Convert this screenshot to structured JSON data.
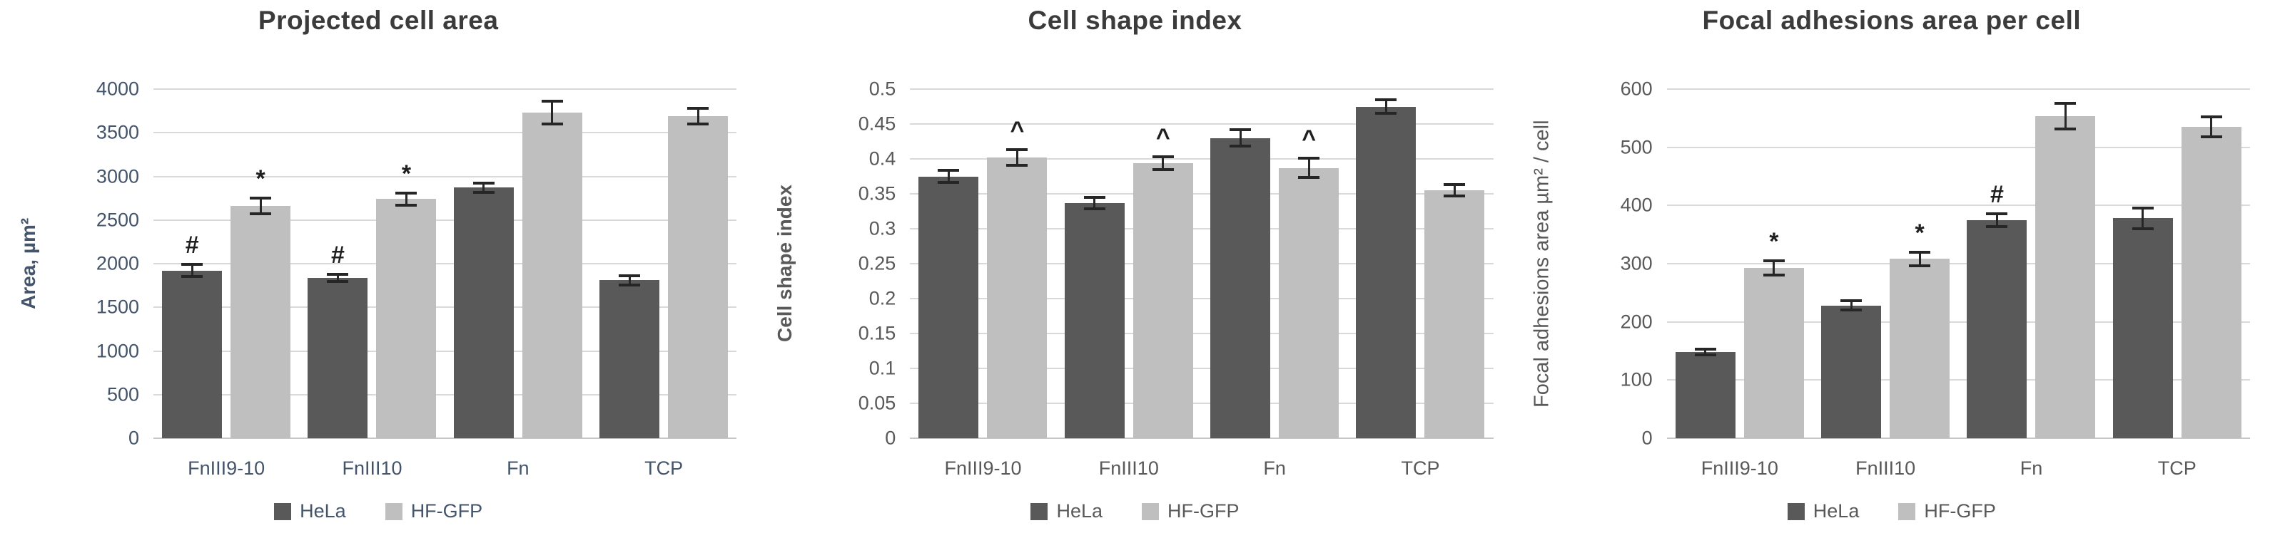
{
  "page": {
    "background": "#ffffff",
    "grid_color": "#d9d9d9",
    "error_bar_color": "#262626"
  },
  "chart_data": [
    {
      "type": "bar",
      "title": "Projected cell area",
      "ylabel": "Area, µm²",
      "xlabel": "",
      "text_color": "#44546A",
      "ylim": [
        0,
        4000
      ],
      "grid": true,
      "legend_position": "bottom",
      "ytick_values": [
        0,
        500,
        1000,
        1500,
        2000,
        2500,
        3000,
        3500,
        4000
      ],
      "ytick_labels": [
        "0",
        "500",
        "1000",
        "1500",
        "2000",
        "2500",
        "3000",
        "3500",
        "4000"
      ],
      "categories": [
        "FnIII9-10",
        "FnIII10",
        "Fn",
        "TCP"
      ],
      "series": [
        {
          "name": "HeLa",
          "color": "#595959",
          "values": [
            1920,
            1840,
            2870,
            1810
          ],
          "errors": [
            70,
            40,
            55,
            55
          ],
          "annotations": [
            "#",
            "#",
            "",
            ""
          ]
        },
        {
          "name": "HF-GFP",
          "color": "#BFBFBF",
          "values": [
            2660,
            2740,
            3730,
            3690
          ],
          "errors": [
            90,
            70,
            130,
            90
          ],
          "annotations": [
            "*",
            "*",
            "",
            ""
          ]
        }
      ]
    },
    {
      "type": "bar",
      "title": "Cell shape index",
      "ylabel": "Cell shape index",
      "xlabel": "",
      "text_color": "#595959",
      "ylim": [
        0,
        0.5
      ],
      "grid": true,
      "legend_position": "bottom",
      "ytick_values": [
        0,
        0.05,
        0.1,
        0.15,
        0.2,
        0.25,
        0.3,
        0.35,
        0.4,
        0.45,
        0.5
      ],
      "ytick_labels": [
        "0",
        "0.05",
        "0.1",
        "0.15",
        "0.2",
        "0.25",
        "0.3",
        "0.35",
        "0.4",
        "0.45",
        "0.5"
      ],
      "categories": [
        "FnIII9-10",
        "FnIII10",
        "Fn",
        "TCP"
      ],
      "series": [
        {
          "name": "HeLa",
          "color": "#595959",
          "values": [
            0.375,
            0.337,
            0.43,
            0.475
          ],
          "errors": [
            0.009,
            0.008,
            0.012,
            0.01
          ],
          "annotations": [
            "",
            "",
            "",
            ""
          ]
        },
        {
          "name": "HF-GFP",
          "color": "#BFBFBF",
          "values": [
            0.402,
            0.394,
            0.387,
            0.355
          ],
          "errors": [
            0.011,
            0.009,
            0.014,
            0.008
          ],
          "annotations": [
            "^",
            "^",
            "^",
            ""
          ]
        }
      ]
    },
    {
      "type": "bar",
      "title": "Focal adhesions area per cell",
      "ylabel": "Focal adhesions area  µm² / cell",
      "xlabel": "",
      "text_color": "#595959",
      "ylim": [
        0,
        600
      ],
      "grid": true,
      "legend_position": "bottom",
      "ytick_values": [
        0,
        100,
        200,
        300,
        400,
        500,
        600
      ],
      "ytick_labels": [
        "0",
        "100",
        "200",
        "300",
        "400",
        "500",
        "600"
      ],
      "categories": [
        "FnIII9-10",
        "FnIII10",
        "Fn",
        "TCP"
      ],
      "series": [
        {
          "name": "HeLa",
          "color": "#595959",
          "values": [
            148,
            228,
            375,
            378
          ],
          "errors": [
            5,
            8,
            11,
            18
          ],
          "annotations": [
            "",
            "",
            "#",
            ""
          ]
        },
        {
          "name": "HF-GFP",
          "color": "#BFBFBF",
          "values": [
            293,
            308,
            553,
            535
          ],
          "errors": [
            12,
            12,
            22,
            17
          ],
          "annotations": [
            "*",
            "*",
            "",
            ""
          ]
        }
      ]
    }
  ]
}
